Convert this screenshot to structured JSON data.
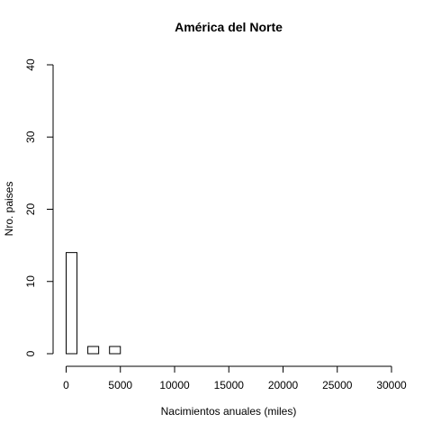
{
  "chart_data": {
    "type": "bar",
    "title": "América del Norte",
    "xlabel": "Nacimientos anuales (miles)",
    "ylabel": "Nro. paises",
    "xlim": [
      0,
      30000
    ],
    "ylim": [
      0,
      40
    ],
    "x_ticks": [
      0,
      5000,
      10000,
      15000,
      20000,
      25000,
      30000
    ],
    "y_ticks": [
      0,
      10,
      20,
      30,
      40
    ],
    "bins": [
      {
        "start": 0,
        "end": 1000,
        "count": 14
      },
      {
        "start": 1000,
        "end": 2000,
        "count": 0
      },
      {
        "start": 2000,
        "end": 3000,
        "count": 1
      },
      {
        "start": 3000,
        "end": 4000,
        "count": 0
      },
      {
        "start": 4000,
        "end": 5000,
        "count": 1
      }
    ],
    "grid": false,
    "legend": "none"
  }
}
